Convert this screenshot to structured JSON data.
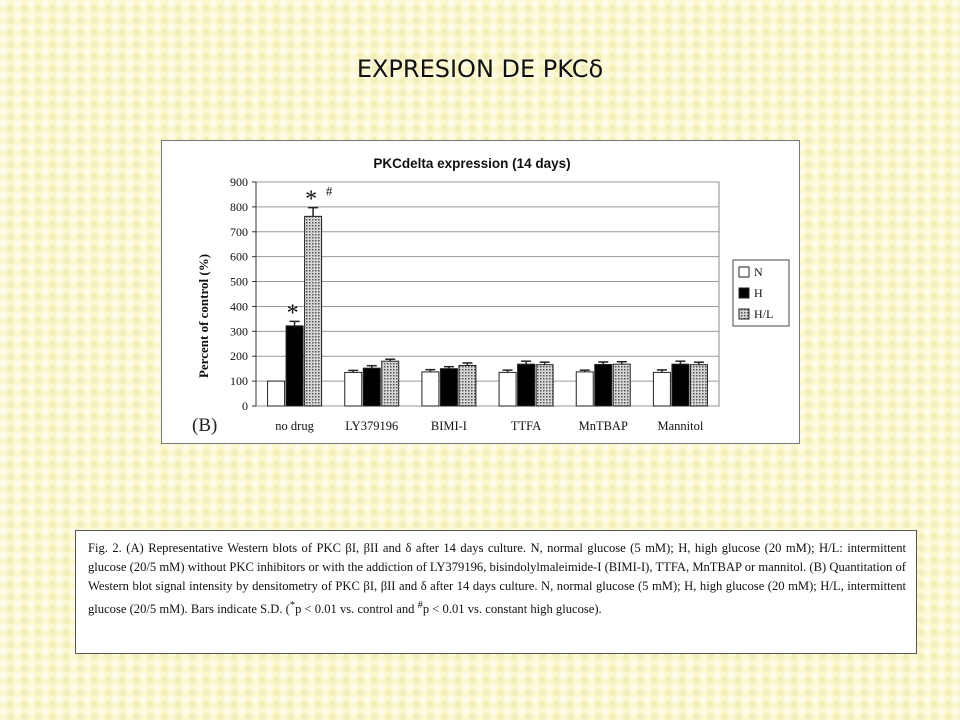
{
  "slide": {
    "title": "EXPRESION DE PKCδ"
  },
  "chart_data": {
    "type": "bar",
    "title": "PKCdelta expression (14 days)",
    "panel_label": "(B)",
    "ylabel": "Percent of control (%)",
    "xlabel": "",
    "ylim": [
      0,
      900
    ],
    "yticks": [
      0,
      100,
      200,
      300,
      400,
      500,
      600,
      700,
      800,
      900
    ],
    "grid": true,
    "legend_position": "right",
    "categories": [
      "no drug",
      "LY379196",
      "BIMI-I",
      "TTFA",
      "MnTBAP",
      "Mannitol"
    ],
    "series": [
      {
        "name": "N",
        "color": "#ffffff",
        "pattern": "none",
        "values": [
          100,
          135,
          137,
          135,
          137,
          135
        ],
        "errors": [
          0,
          8,
          9,
          9,
          7,
          10
        ]
      },
      {
        "name": "H",
        "color": "#000000",
        "pattern": "none",
        "values": [
          322,
          152,
          150,
          168,
          167,
          168
        ],
        "errors": [
          18,
          10,
          8,
          12,
          10,
          12
        ]
      },
      {
        "name": "H/L",
        "color": "#b8b8b8",
        "pattern": "dots",
        "values": [
          762,
          180,
          163,
          166,
          168,
          166
        ],
        "errors": [
          35,
          8,
          10,
          10,
          10,
          10
        ]
      }
    ],
    "annotations": [
      {
        "category": "no drug",
        "series": "H",
        "text": "*"
      },
      {
        "category": "no drug",
        "series": "H/L",
        "text": "*"
      },
      {
        "category": "no drug",
        "series": "H/L",
        "text": "#"
      }
    ]
  },
  "caption": {
    "text_1": "Fig. 2. (A) Representative Western blots of PKC βI, βII and δ after 14 days culture. N, normal glucose (5 mM); H, high glucose (20 mM); H/L: intermittent glucose (20/5 mM) without PKC inhibitors or with the addiction of LY379196, bisindolylmaleimide-I (BIMI-I), TTFA, MnTBAP or mannitol. (B) Quantitation of Western blot signal intensity by densitometry of PKC βI, βII and δ after 14 days culture. N, normal glucose (5 mM); H, high glucose (20 mM); H/L, intermittent glucose (20/5 mM). Bars indicate S.D. (",
    "sup_1": "*",
    "text_2": "p < 0.01 vs. control and ",
    "sup_2": "#",
    "text_3": "p < 0.01 vs. constant high glucose)."
  }
}
